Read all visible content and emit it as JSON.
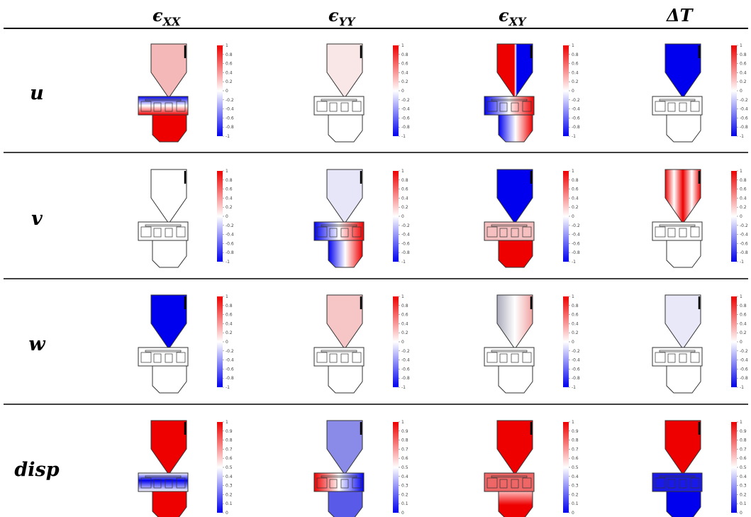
{
  "header": {
    "columns": [
      {
        "symbol": "ϵ",
        "subscript": "XX"
      },
      {
        "symbol": "ϵ",
        "subscript": "YY"
      },
      {
        "symbol": "ϵ",
        "subscript": "XY"
      },
      {
        "symbol": "ΔT"
      }
    ]
  },
  "rows": [
    {
      "label": "u"
    },
    {
      "label": "v"
    },
    {
      "label": "w"
    },
    {
      "label": "disp"
    }
  ],
  "colorbar": {
    "signed_ticks": [
      1,
      0.8,
      0.6,
      0.4,
      0.2,
      0,
      -0.2,
      -0.4,
      -0.6,
      -0.8,
      -1
    ],
    "disp_ticks": [
      1,
      0.9,
      0.8,
      0.7,
      0.6,
      0.5,
      0.4,
      0.3,
      0.2,
      0.1,
      0
    ]
  }
}
